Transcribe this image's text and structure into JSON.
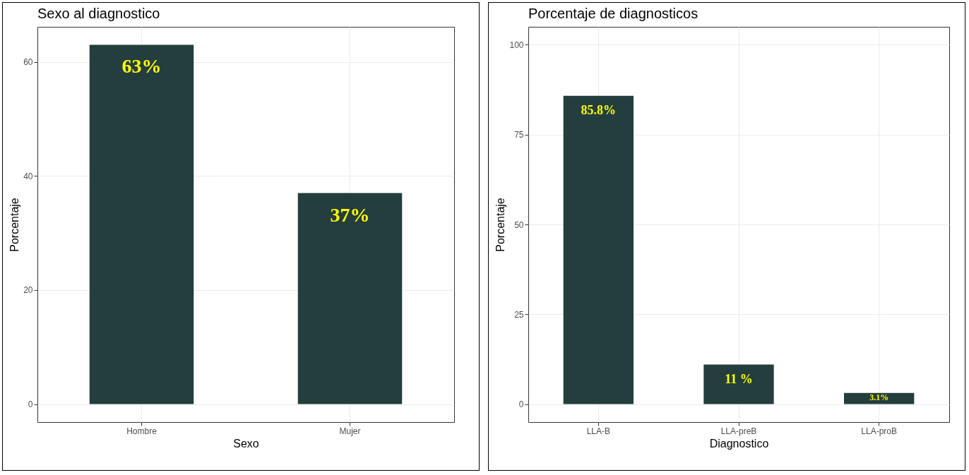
{
  "chart_data": [
    {
      "type": "bar",
      "title": "Sexo al diagnostico",
      "xlabel": "Sexo",
      "ylabel": "Porcentaje",
      "categories": [
        "Hombre",
        "Mujer"
      ],
      "values": [
        63,
        37
      ],
      "value_labels": [
        "63%",
        "37%"
      ],
      "color": "#243d3d",
      "ylim": [
        -3.15,
        66.15
      ],
      "yticks": [
        0,
        20,
        40,
        60
      ],
      "grid": true
    },
    {
      "type": "bar",
      "title": "Porcentaje de diagnosticos",
      "xlabel": "Diagnostico",
      "ylabel": "Porcentaje",
      "categories": [
        "LLA-B",
        "LLA-preB",
        "LLA-proB"
      ],
      "values": [
        85.8,
        11,
        3.1
      ],
      "value_labels": [
        "85.8%",
        "11 %",
        "3.1%"
      ],
      "color": "#243d3d",
      "ylim": [
        -5,
        105
      ],
      "yticks": [
        0,
        25,
        50,
        75,
        100
      ],
      "grid": true
    }
  ]
}
